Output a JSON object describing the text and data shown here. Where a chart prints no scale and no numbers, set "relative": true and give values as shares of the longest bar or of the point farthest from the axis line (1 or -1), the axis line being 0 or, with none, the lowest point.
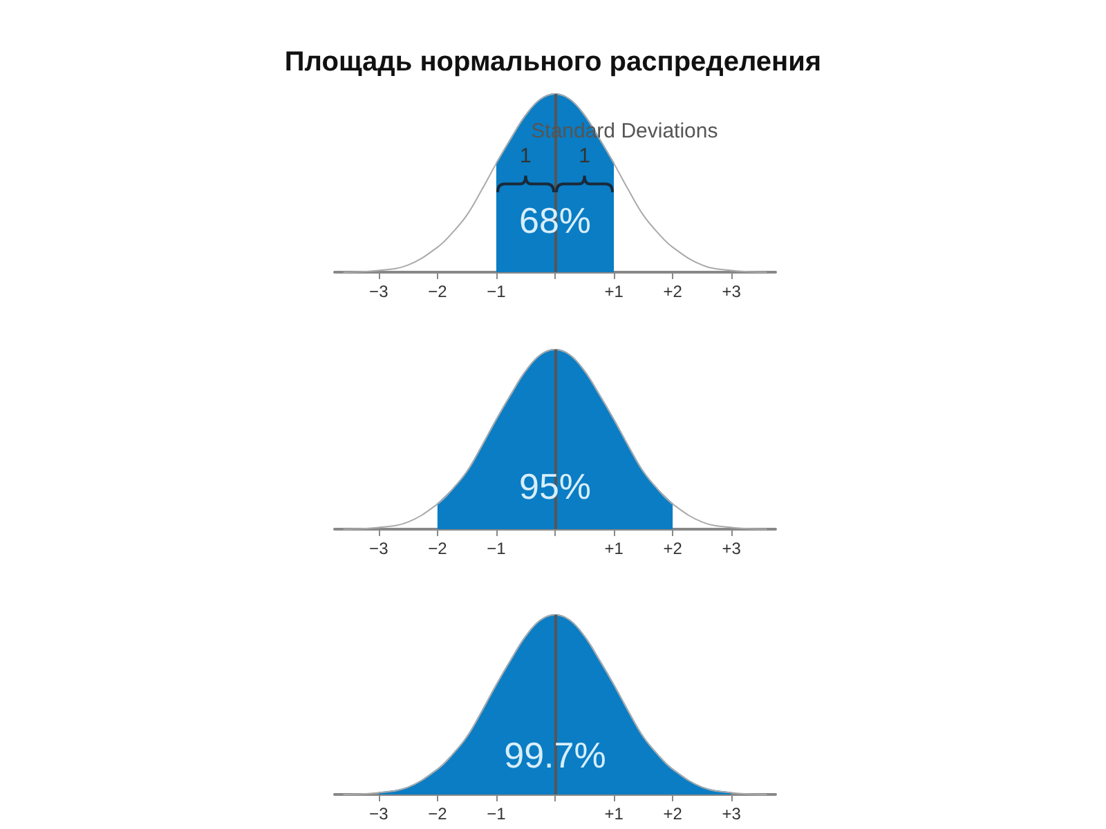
{
  "chart_data": [
    {
      "type": "area",
      "title": "Площадь нормального распределения",
      "relative": true,
      "xlim": [
        -3.75,
        3.75
      ],
      "xticks": [
        {
          "value": -3,
          "label": "−3"
        },
        {
          "value": -2,
          "label": "−2"
        },
        {
          "value": -1,
          "label": "−1"
        },
        {
          "value": 0,
          "label": null
        },
        {
          "value": 1,
          "label": "+1"
        },
        {
          "value": 2,
          "label": "+2"
        },
        {
          "value": 3,
          "label": "+3"
        }
      ],
      "series": [
        {
          "type": "line",
          "color": "#aaaaaa",
          "x": [
            -3.6,
            -3,
            -2.5,
            -2,
            -1.75,
            -1.5,
            -1.25,
            -1,
            -0.75,
            -0.5,
            -0.25,
            0,
            0.25,
            0.5,
            0.75,
            1,
            1.25,
            1.5,
            1.75,
            2,
            2.5,
            3,
            3.6
          ],
          "values": [
            0.0,
            0.01,
            0.04,
            0.14,
            0.22,
            0.32,
            0.46,
            0.61,
            0.75,
            0.88,
            0.97,
            1,
            0.97,
            0.88,
            0.75,
            0.61,
            0.46,
            0.32,
            0.22,
            0.14,
            0.04,
            0.01,
            0.0
          ]
        },
        {
          "color": "#0a7dc4",
          "x": [
            -1,
            -0.75,
            -0.5,
            -0.25,
            0,
            0.25,
            0.5,
            0.75,
            1
          ],
          "values": [
            0.61,
            0.75,
            0.88,
            0.97,
            1,
            0.97,
            0.88,
            0.75,
            0.61
          ]
        }
      ],
      "ref_lines": [
        {
          "axis": "x",
          "value": 0,
          "color": "#555555"
        }
      ],
      "annotations": [
        "Standard Deviations",
        "1",
        "1",
        "68%"
      ]
    },
    {
      "type": "area",
      "relative": true,
      "xlim": [
        -3.75,
        3.75
      ],
      "xticks": [
        {
          "value": -3,
          "label": "−3"
        },
        {
          "value": -2,
          "label": "−2"
        },
        {
          "value": -1,
          "label": "−1"
        },
        {
          "value": 0,
          "label": null
        },
        {
          "value": 1,
          "label": "+1"
        },
        {
          "value": 2,
          "label": "+2"
        },
        {
          "value": 3,
          "label": "+3"
        }
      ],
      "series": [
        {
          "type": "line",
          "color": "#aaaaaa",
          "x": [
            -3.6,
            -3,
            -2.5,
            -2,
            -1.75,
            -1.5,
            -1.25,
            -1,
            -0.75,
            -0.5,
            -0.25,
            0,
            0.25,
            0.5,
            0.75,
            1,
            1.25,
            1.5,
            1.75,
            2,
            2.5,
            3,
            3.6
          ],
          "values": [
            0.0,
            0.01,
            0.04,
            0.14,
            0.22,
            0.32,
            0.46,
            0.61,
            0.75,
            0.88,
            0.97,
            1,
            0.97,
            0.88,
            0.75,
            0.61,
            0.46,
            0.32,
            0.22,
            0.14,
            0.04,
            0.01,
            0.0
          ]
        },
        {
          "color": "#0a7dc4",
          "x": [
            -2,
            -1.75,
            -1.5,
            -1.25,
            -1,
            -0.75,
            -0.5,
            -0.25,
            0,
            0.25,
            0.5,
            0.75,
            1,
            1.25,
            1.5,
            1.75,
            2
          ],
          "values": [
            0.14,
            0.22,
            0.32,
            0.46,
            0.61,
            0.75,
            0.88,
            0.97,
            1,
            0.97,
            0.88,
            0.75,
            0.61,
            0.46,
            0.32,
            0.22,
            0.14
          ]
        }
      ],
      "ref_lines": [
        {
          "axis": "x",
          "value": 0,
          "color": "#555555"
        }
      ],
      "annotations": [
        "95%"
      ]
    },
    {
      "type": "area",
      "relative": true,
      "xlim": [
        -3.75,
        3.75
      ],
      "xticks": [
        {
          "value": -3,
          "label": "−3"
        },
        {
          "value": -2,
          "label": "−2"
        },
        {
          "value": -1,
          "label": "−1"
        },
        {
          "value": 0,
          "label": null
        },
        {
          "value": 1,
          "label": "+1"
        },
        {
          "value": 2,
          "label": "+2"
        },
        {
          "value": 3,
          "label": "+3"
        }
      ],
      "series": [
        {
          "type": "line",
          "color": "#aaaaaa",
          "x": [
            -3.6,
            -3,
            -2.5,
            -2,
            -1.75,
            -1.5,
            -1.25,
            -1,
            -0.75,
            -0.5,
            -0.25,
            0,
            0.25,
            0.5,
            0.75,
            1,
            1.25,
            1.5,
            1.75,
            2,
            2.5,
            3,
            3.6
          ],
          "values": [
            0.0,
            0.01,
            0.04,
            0.14,
            0.22,
            0.32,
            0.46,
            0.61,
            0.75,
            0.88,
            0.97,
            1,
            0.97,
            0.88,
            0.75,
            0.61,
            0.46,
            0.32,
            0.22,
            0.14,
            0.04,
            0.01,
            0.0
          ]
        },
        {
          "color": "#0a7dc4",
          "x": [
            -3,
            -2.5,
            -2,
            -1.75,
            -1.5,
            -1.25,
            -1,
            -0.75,
            -0.5,
            -0.25,
            0,
            0.25,
            0.5,
            0.75,
            1,
            1.25,
            1.5,
            1.75,
            2,
            2.5,
            3
          ],
          "values": [
            0.01,
            0.04,
            0.14,
            0.22,
            0.32,
            0.46,
            0.61,
            0.75,
            0.88,
            0.97,
            1,
            0.97,
            0.88,
            0.75,
            0.61,
            0.46,
            0.32,
            0.22,
            0.14,
            0.04,
            0.01
          ]
        }
      ],
      "ref_lines": [
        {
          "axis": "x",
          "value": 0,
          "color": "#555555"
        }
      ],
      "annotations": [
        "99.7%"
      ]
    }
  ]
}
